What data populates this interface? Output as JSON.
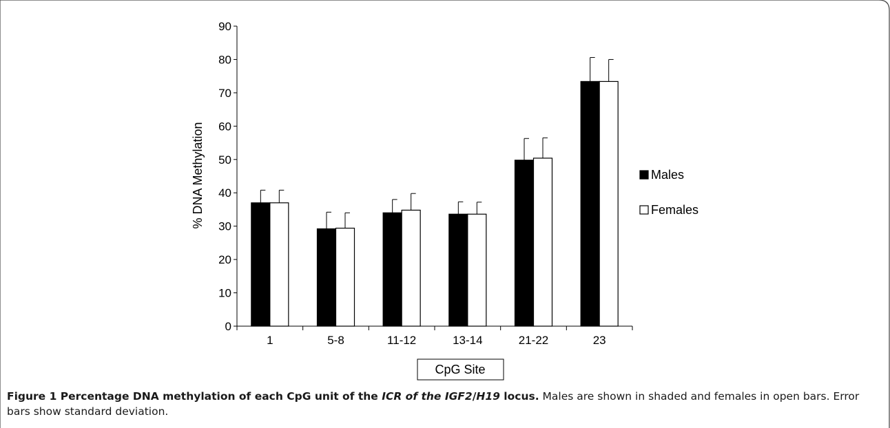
{
  "chart_data": {
    "type": "bar",
    "categories": [
      "1",
      "5-8",
      "11-12",
      "13-14",
      "21-22",
      "23"
    ],
    "series": [
      {
        "name": "Males",
        "values": [
          37,
          29.2,
          34,
          33.6,
          49.8,
          73.4
        ],
        "errors": [
          3.8,
          5,
          4,
          3.7,
          6.5,
          7.2
        ],
        "color": "#000000",
        "fill": "shaded"
      },
      {
        "name": "Females",
        "values": [
          37,
          29.4,
          34.8,
          33.6,
          50.4,
          73.4
        ],
        "errors": [
          3.8,
          4.6,
          5,
          3.6,
          6.1,
          6.6
        ],
        "color": "#ffffff",
        "fill": "open"
      }
    ],
    "ylabel": "% DNA Methylation",
    "xlabel": "CpG Site",
    "ylim": [
      0,
      90
    ],
    "yticks": [
      0,
      10,
      20,
      30,
      40,
      50,
      60,
      70,
      80,
      90
    ],
    "legend_position": "right",
    "grid": false
  },
  "caption": {
    "bold_start": "Figure 1 Percentage DNA methylation of each CpG unit of the ",
    "bold_italic": "ICR of the IGF2",
    "bold_mid": "/",
    "bold_italic_2": "H19",
    "bold_end": " locus.",
    "rest": " Males are shown in shaded and females in open bars. Error bars show standard deviation."
  }
}
